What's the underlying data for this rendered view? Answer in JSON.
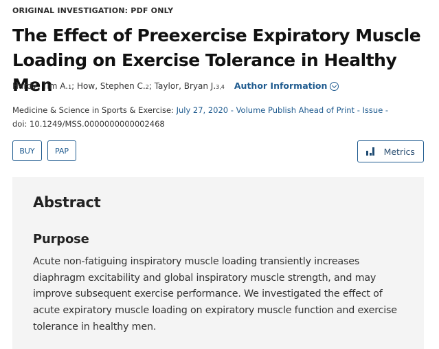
{
  "article": {
    "type_label": "ORIGINAL INVESTIGATION: PDF ONLY",
    "title": "The Effect of Preexercise Expiratory Muscle Loading on Exercise Tolerance in Healthy Men"
  },
  "authors": {
    "list": [
      {
        "name": "Hardy, Tim A.",
        "sup": "1",
        "sep": "; "
      },
      {
        "name": "How, Stephen C.",
        "sup": "2",
        "sep": "; "
      },
      {
        "name": "Taylor, Bryan J.",
        "sup": "3,4",
        "sep": ""
      }
    ],
    "info_link": "Author Information",
    "info_icon": "chevron-down-circle-icon"
  },
  "citation": {
    "journal": "Medicine & Science in Sports & Exercise:",
    "date_issue": "July 27, 2020 - Volume Publish Ahead of Print - Issue -",
    "doi": "doi: 10.1249/MSS.0000000000002468"
  },
  "actions": {
    "buy_label": "BUY",
    "pap_label": "PAP",
    "metrics_label": "Metrics",
    "metrics_icon": "bar-chart-icon"
  },
  "abstract": {
    "heading": "Abstract",
    "section_heading": "Purpose",
    "text": "Acute non-fatiguing inspiratory muscle loading transiently increases diaphragm excitability and global inspiratory muscle strength, and may improve subsequent exercise performance. We investigated the effect of acute expiratory muscle loading on expiratory muscle function and exercise tolerance in healthy men."
  },
  "colors": {
    "link": "#1f5b8f",
    "abstract_bg": "#f4f4f4"
  }
}
